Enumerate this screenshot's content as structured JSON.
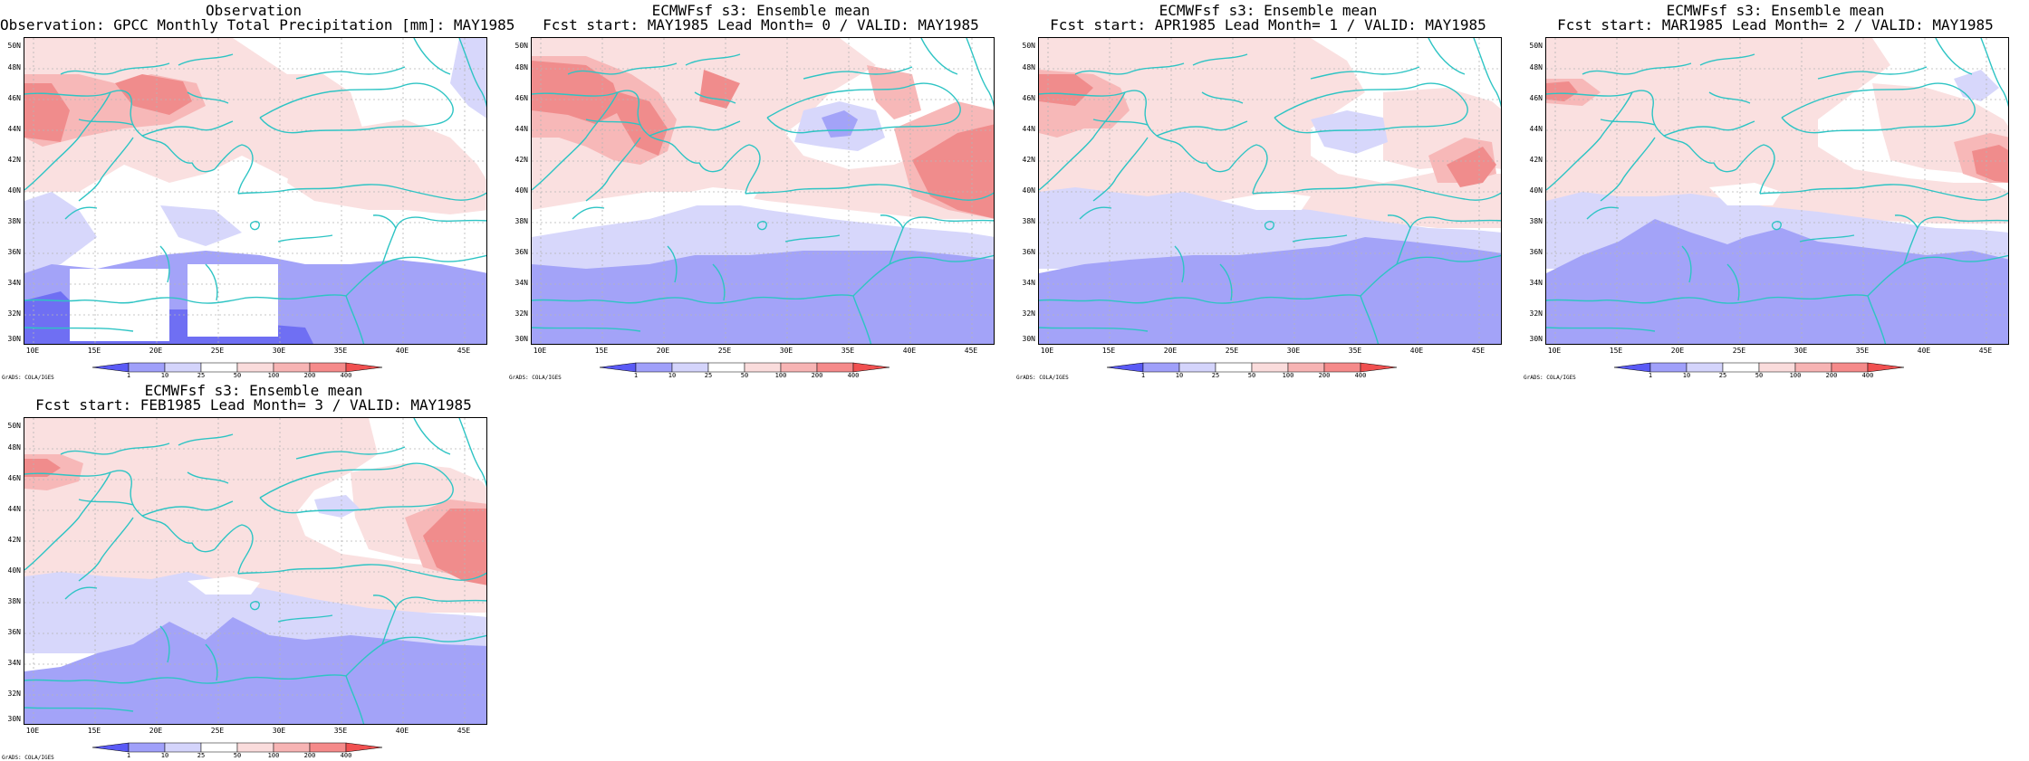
{
  "panels": [
    {
      "title_line1": "Observation",
      "title_line2": "Observation: GPCC Monthly Total Precipitation [mm]: MAY1985"
    },
    {
      "title_line1": "ECMWFsf s3: Ensemble mean",
      "title_line2": "Fcst start: MAY1985  Lead Month= 0 / VALID: MAY1985"
    },
    {
      "title_line1": "ECMWFsf s3: Ensemble mean",
      "title_line2": "Fcst start: APR1985  Lead Month= 1 / VALID: MAY1985"
    },
    {
      "title_line1": "ECMWFsf s3: Ensemble mean",
      "title_line2": "Fcst start: MAR1985  Lead Month= 2 / VALID: MAY1985"
    },
    {
      "title_line1": "ECMWFsf s3: Ensemble mean",
      "title_line2": "Fcst start: FEB1985  Lead Month= 3 / VALID: MAY1985"
    }
  ],
  "lat_labels": [
    "50N",
    "48N",
    "46N",
    "44N",
    "42N",
    "40N",
    "38N",
    "36N",
    "34N",
    "32N",
    "30N"
  ],
  "lon_labels": [
    "10E",
    "15E",
    "20E",
    "25E",
    "30E",
    "35E",
    "40E",
    "45E"
  ],
  "colorbar": {
    "levels": [
      "1",
      "10",
      "25",
      "50",
      "100",
      "200",
      "400"
    ],
    "colors": [
      "#5a5af5",
      "#a0a0fa",
      "#d4d4fb",
      "#ffffff",
      "#fadcdc",
      "#f7b4b4",
      "#f58a8a",
      "#f05050"
    ]
  },
  "footer": "GrADS: COLA/IGES",
  "colors": {
    "coast": "#2ec4c4",
    "grid": "#b5b5b5",
    "blue_strong": "#6f6ff3",
    "blue_mid": "#a3a3f8",
    "blue_light": "#d7d7fb",
    "red_light": "#fae0e0",
    "red_mid": "#f7b8b8",
    "red_strong": "#f08c8c"
  }
}
